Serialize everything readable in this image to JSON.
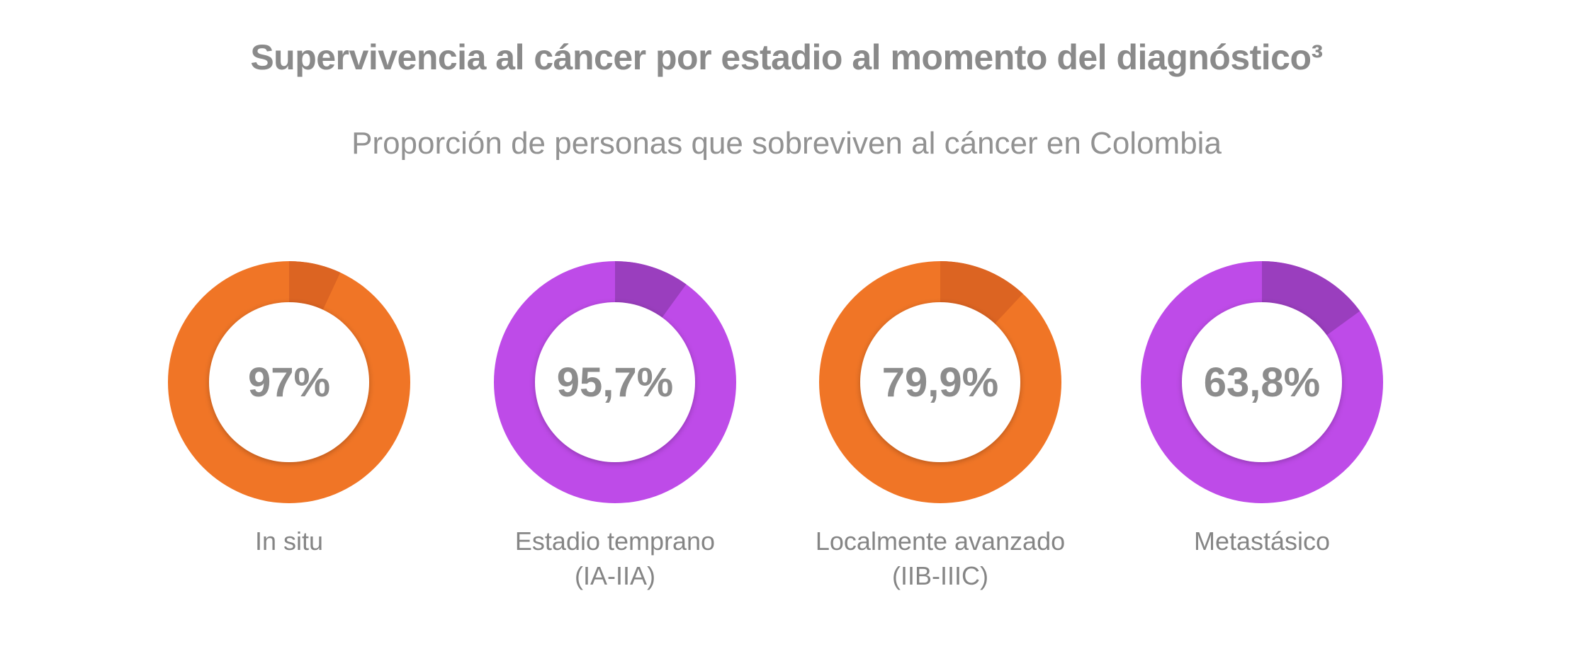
{
  "chart_data": {
    "type": "donut",
    "title": "Supervivencia al cáncer por estadio al momento del diagnóstico³",
    "subtitle": "Proporción de personas que sobreviven al cáncer en Colombia",
    "unit": "%",
    "items": [
      {
        "label": "In situ",
        "sublabel": "",
        "value": 97,
        "value_label": "97%",
        "color": "#F07526",
        "accent": "#DC6422"
      },
      {
        "label": "Estadio temprano",
        "sublabel": "(IA-IIA)",
        "value": 95.7,
        "value_label": "95,7%",
        "color": "#BE4BE8",
        "accent": "#9A3EBE"
      },
      {
        "label": "Localmente avanzado",
        "sublabel": "(IIB-IIIC)",
        "value": 79.9,
        "value_label": "79,9%",
        "color": "#F07526",
        "accent": "#DC6422"
      },
      {
        "label": "Metastásico",
        "sublabel": "",
        "value": 63.8,
        "value_label": "63,8%",
        "color": "#BE4BE8",
        "accent": "#9A3EBE"
      }
    ]
  }
}
